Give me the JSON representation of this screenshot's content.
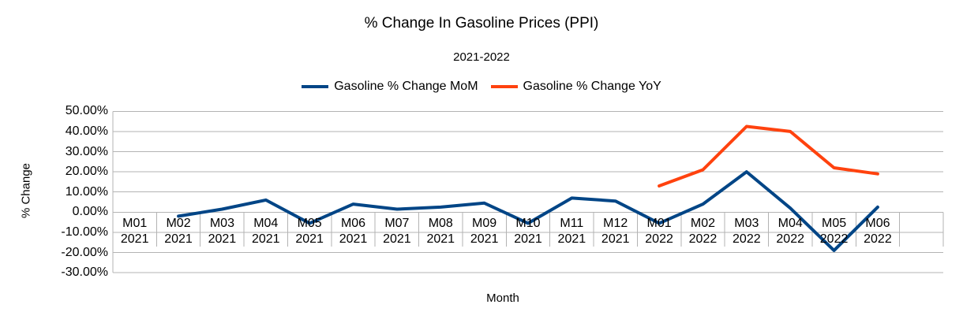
{
  "chart_data": {
    "type": "line",
    "title": "% Change In Gasoline Prices (PPI)",
    "subtitle": "2021-2022",
    "x_axis_title": "Month",
    "y_axis_title": "% Change",
    "legend_position": "top",
    "grid": "horizontal",
    "categories": [
      "M01 2021",
      "M02 2021",
      "M03 2021",
      "M04 2021",
      "M05 2021",
      "M06 2021",
      "M07 2021",
      "M08 2021",
      "M09 2021",
      "M10 2021",
      "M11 2021",
      "M12 2021",
      "M01 2022",
      "M02 2022",
      "M03 2022",
      "M04 2022",
      "M05 2022",
      "M06 2022"
    ],
    "series": [
      {
        "name": "Gasoline % Change MoM",
        "color": "#004586",
        "values": [
          null,
          -2,
          1.5,
          6,
          -5.5,
          4,
          1.5,
          2.5,
          4.5,
          -5.5,
          7,
          5.5,
          -5.5,
          4,
          20,
          2,
          -19,
          2.5
        ]
      },
      {
        "name": "Gasoline % Change YoY",
        "color": "#FF420E",
        "values": [
          null,
          null,
          null,
          null,
          null,
          null,
          null,
          null,
          null,
          null,
          null,
          null,
          13,
          21,
          42.5,
          40,
          22,
          19
        ]
      }
    ],
    "y_ticks": [
      {
        "value": 50,
        "label": "50.00%"
      },
      {
        "value": 40,
        "label": "40.00%"
      },
      {
        "value": 30,
        "label": "30.00%"
      },
      {
        "value": 20,
        "label": "20.00%"
      },
      {
        "value": 10,
        "label": "10.00%"
      },
      {
        "value": 0,
        "label": "0.00%"
      },
      {
        "value": -10,
        "label": "-10.00%"
      },
      {
        "value": -20,
        "label": "-20.00%"
      },
      {
        "value": -30,
        "label": "-30.00%"
      }
    ],
    "ylim": [
      -30,
      50
    ]
  },
  "colors": {
    "gridline": "#b3b3b3",
    "axis_line": "#b3b3b3",
    "text": "#000000",
    "background": "#ffffff"
  }
}
